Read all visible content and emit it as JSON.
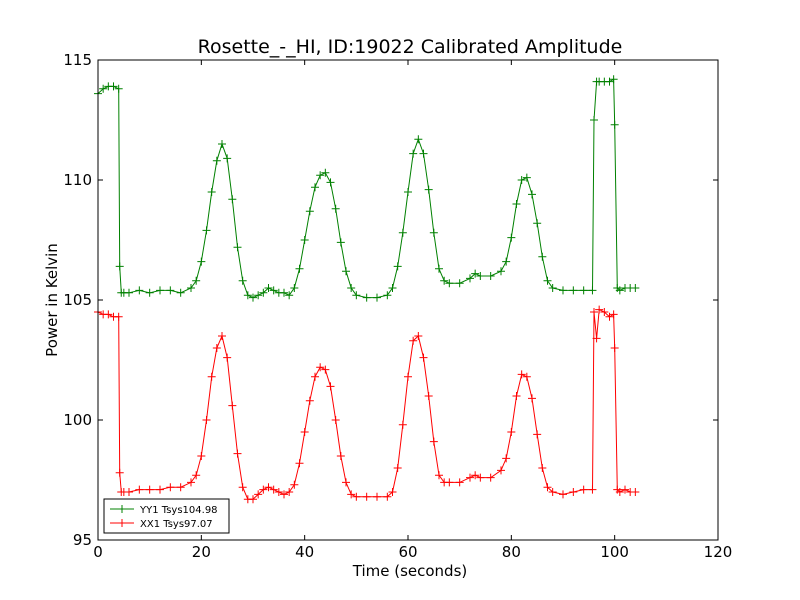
{
  "chart_data": {
    "type": "line",
    "title": "Rosette_-_HI, ID:19022 Calibrated Amplitude",
    "xlabel": "Time (seconds)",
    "ylabel": "Power in Kelvin",
    "xlim": [
      0,
      120
    ],
    "ylim": [
      95,
      115
    ],
    "xticks": [
      0,
      20,
      40,
      60,
      80,
      100,
      120
    ],
    "yticks": [
      95,
      100,
      105,
      110,
      115
    ],
    "grid": false,
    "legend_position": "lower-left",
    "marker": "+",
    "series": [
      {
        "name": "YY1 Tsys104.98",
        "color": "#008000",
        "x": [
          0,
          1,
          2,
          3,
          4,
          4.2,
          4.5,
          5,
          6,
          8,
          10,
          12,
          14,
          16,
          18,
          19,
          20,
          21,
          22,
          23,
          24,
          25,
          26,
          27,
          28,
          29,
          30,
          31,
          32,
          33,
          34,
          35,
          36,
          37,
          38,
          39,
          40,
          41,
          42,
          43,
          44,
          45,
          46,
          47,
          48,
          49,
          50,
          52,
          54,
          56,
          57,
          58,
          59,
          60,
          61,
          62,
          63,
          64,
          65,
          66,
          67,
          68,
          70,
          72,
          73,
          74,
          76,
          78,
          79,
          80,
          81,
          82,
          83,
          84,
          85,
          86,
          87,
          88,
          90,
          92,
          94,
          95.7,
          96,
          96.5,
          97,
          98,
          99,
          99.8,
          100,
          100.5,
          101,
          102,
          103,
          104
        ],
        "values": [
          113.6,
          113.8,
          113.9,
          113.9,
          113.8,
          106.4,
          105.3,
          105.3,
          105.3,
          105.4,
          105.3,
          105.4,
          105.4,
          105.3,
          105.5,
          105.8,
          106.6,
          107.9,
          109.5,
          110.8,
          111.5,
          110.9,
          109.2,
          107.2,
          105.8,
          105.2,
          105.1,
          105.2,
          105.3,
          105.5,
          105.4,
          105.3,
          105.3,
          105.2,
          105.5,
          106.3,
          107.5,
          108.7,
          109.7,
          110.2,
          110.3,
          109.9,
          108.8,
          107.4,
          106.2,
          105.5,
          105.2,
          105.1,
          105.1,
          105.2,
          105.5,
          106.4,
          107.8,
          109.5,
          111.1,
          111.7,
          111.1,
          109.6,
          107.8,
          106.3,
          105.8,
          105.7,
          105.7,
          105.9,
          106.1,
          106.0,
          106.0,
          106.2,
          106.6,
          107.6,
          109.0,
          110.0,
          110.1,
          109.4,
          108.2,
          106.8,
          105.8,
          105.5,
          105.4,
          105.4,
          105.4,
          105.4,
          112.5,
          114.1,
          114.1,
          114.1,
          114.1,
          114.2,
          112.3,
          105.5,
          105.4,
          105.5,
          105.5,
          105.5
        ]
      },
      {
        "name": "XX1 Tsys97.07",
        "color": "#ff0000",
        "x": [
          0,
          1,
          2,
          3,
          4,
          4.2,
          4.5,
          5,
          6,
          8,
          10,
          12,
          14,
          16,
          18,
          19,
          20,
          21,
          22,
          23,
          24,
          25,
          26,
          27,
          28,
          29,
          30,
          31,
          32,
          33,
          34,
          35,
          36,
          37,
          38,
          39,
          40,
          41,
          42,
          43,
          44,
          45,
          46,
          47,
          48,
          49,
          50,
          52,
          54,
          56,
          57,
          58,
          59,
          60,
          61,
          62,
          63,
          64,
          65,
          66,
          67,
          68,
          70,
          72,
          73,
          74,
          76,
          78,
          79,
          80,
          81,
          82,
          83,
          84,
          85,
          86,
          87,
          88,
          90,
          92,
          94,
          95.7,
          96,
          96.5,
          97,
          98,
          99,
          99.8,
          100,
          100.5,
          101,
          102,
          103,
          104
        ],
        "values": [
          104.5,
          104.4,
          104.4,
          104.3,
          104.3,
          97.8,
          97.0,
          97.0,
          97.0,
          97.1,
          97.1,
          97.1,
          97.2,
          97.2,
          97.4,
          97.7,
          98.5,
          100.0,
          101.8,
          103.0,
          103.5,
          102.6,
          100.6,
          98.6,
          97.2,
          96.7,
          96.7,
          96.9,
          97.1,
          97.2,
          97.1,
          97.0,
          96.9,
          97.0,
          97.3,
          98.2,
          99.5,
          100.8,
          101.8,
          102.2,
          102.1,
          101.4,
          100.0,
          98.5,
          97.4,
          96.9,
          96.8,
          96.8,
          96.8,
          96.8,
          97.0,
          98.0,
          99.8,
          101.8,
          103.3,
          103.5,
          102.6,
          101.0,
          99.1,
          97.7,
          97.4,
          97.4,
          97.4,
          97.6,
          97.7,
          97.6,
          97.6,
          97.9,
          98.4,
          99.5,
          101.0,
          101.9,
          101.8,
          100.9,
          99.4,
          98.0,
          97.2,
          97.0,
          96.9,
          97.0,
          97.1,
          97.1,
          104.5,
          103.4,
          104.6,
          104.5,
          104.3,
          104.4,
          103.0,
          97.1,
          97.0,
          97.1,
          97.0,
          97.0
        ]
      }
    ]
  }
}
